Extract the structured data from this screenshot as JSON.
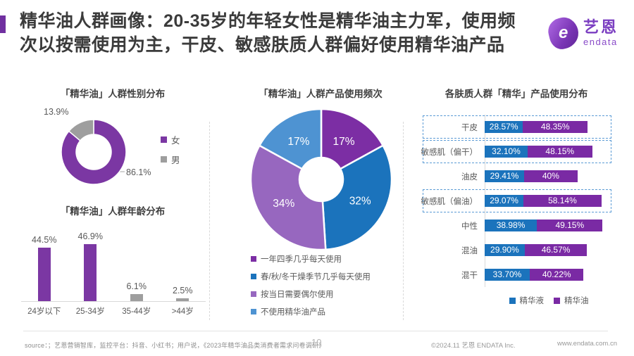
{
  "header": {
    "title_line1": "精华油人群画像：20-35岁的年轻女性是精华油主力军，使用频",
    "title_line2": "次以按需使用为主，干皮、敏感肤质人群偏好使用精华油产品",
    "logo_mark": "e",
    "logo_zh": "艺恩",
    "logo_en": "endata"
  },
  "colors": {
    "accent_purple": "#7030A0",
    "brand_purple": "#7B3EC1",
    "bar_purple": "#7B37A3",
    "stack_purple": "#7A2AA4",
    "blue": "#1B73BC",
    "light_blue": "#4E93D2",
    "gray": "#9E9E9E",
    "highlight_dash": "#5B9BD5"
  },
  "chart_data": [
    {
      "id": "gender",
      "type": "pie",
      "donut": true,
      "title": "「精华油」人群性别分布",
      "labels": [
        "女",
        "男"
      ],
      "values": [
        86.1,
        13.9
      ],
      "value_labels": [
        "86.1%",
        "13.9%"
      ],
      "colors": [
        "#7B37A3",
        "#9E9E9E"
      ],
      "legend_position": "right"
    },
    {
      "id": "age",
      "type": "bar",
      "title": "「精华油」人群年龄分布",
      "categories": [
        "24岁以下",
        "25-34岁",
        "35-44岁",
        ">44岁"
      ],
      "values": [
        44.5,
        46.9,
        6.1,
        2.5
      ],
      "value_labels": [
        "44.5%",
        "46.9%",
        "6.1%",
        "2.5%"
      ],
      "colors": [
        "#7B37A3",
        "#7B37A3",
        "#9E9E9E",
        "#9E9E9E"
      ],
      "ylim": [
        0,
        50
      ],
      "grid": false
    },
    {
      "id": "frequency",
      "type": "pie",
      "donut": true,
      "title": "「精华油」人群产品使用频次",
      "labels": [
        "一年四季几乎每天使用",
        "春/秋/冬干燥季节几乎每天使用",
        "按当日需要偶尔使用",
        "不使用精华油产品"
      ],
      "values": [
        17,
        32,
        34,
        17
      ],
      "value_labels": [
        "17%",
        "32%",
        "34%",
        "17%"
      ],
      "colors": [
        "#7C2EA4",
        "#1B73BC",
        "#9767BF",
        "#4E93D2"
      ],
      "legend_position": "bottom"
    },
    {
      "id": "skin",
      "type": "bar",
      "orientation": "horizontal-stacked",
      "title": "各肤质人群「精华」产品使用分布",
      "categories": [
        "干皮",
        "敏感肌（偏干）",
        "油皮",
        "敏感肌（偏油）",
        "中性",
        "混油",
        "混干"
      ],
      "series": [
        {
          "name": "精华液",
          "color": "#1B73BC",
          "values": [
            28.57,
            32.1,
            29.41,
            29.07,
            38.98,
            29.9,
            33.7
          ],
          "labels": [
            "28.57%",
            "32.10%",
            "29.41%",
            "29.07%",
            "38.98%",
            "29.90%",
            "33.70%"
          ]
        },
        {
          "name": "精华油",
          "color": "#7A2AA4",
          "values": [
            48.35,
            48.15,
            40,
            58.14,
            49.15,
            46.57,
            40.22
          ],
          "labels": [
            "48.35%",
            "48.15%",
            "40%",
            "58.14%",
            "49.15%",
            "46.57%",
            "40.22%"
          ]
        }
      ],
      "highlighted_rows": [
        0,
        1,
        3
      ],
      "legend_position": "bottom"
    }
  ],
  "footer": {
    "source": "source：；艺恩营销智库，监控平台：抖音、小红书；用户说，《2023年精华油品类消费者需求问卷调研》",
    "page": "10",
    "copyright": "©2024.11 艺恩 ENDATA Inc.",
    "website": "www.endata.com.cn"
  }
}
